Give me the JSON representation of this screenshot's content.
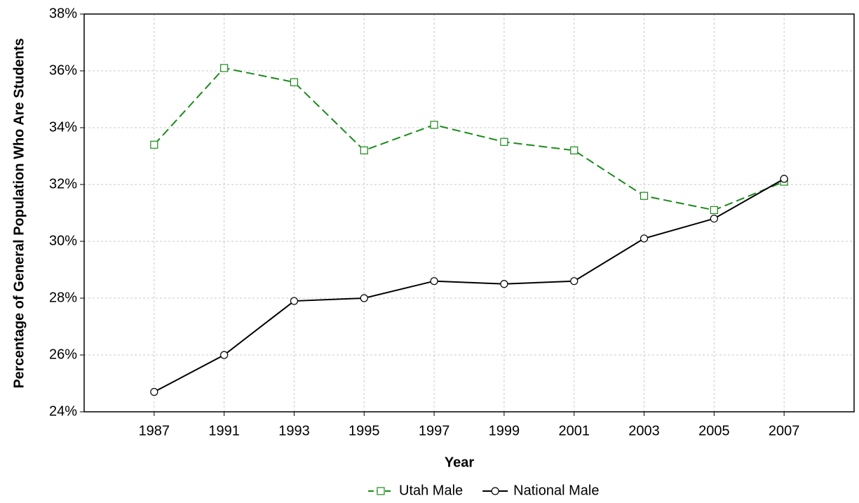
{
  "chart_data": {
    "type": "line",
    "x_label": "Year",
    "y_label": "Percentage of General Population Who Are Students",
    "categories": [
      "1987",
      "1991",
      "1993",
      "1995",
      "1997",
      "1999",
      "2001",
      "2003",
      "2005",
      "2007"
    ],
    "series": [
      {
        "name": "Utah Male",
        "color": "#1a8a1a",
        "dash": true,
        "marker": "square",
        "values": [
          33.4,
          36.1,
          35.6,
          33.2,
          34.1,
          33.5,
          33.2,
          31.6,
          31.1,
          32.1
        ]
      },
      {
        "name": "National Male",
        "color": "#000000",
        "dash": false,
        "marker": "circle",
        "values": [
          24.7,
          26.0,
          27.9,
          28.0,
          28.6,
          28.5,
          28.6,
          30.1,
          30.8,
          32.2
        ]
      }
    ],
    "ylim": [
      24,
      38
    ],
    "yticks": [
      {
        "value": 24,
        "label": "24%"
      },
      {
        "value": 26,
        "label": "26%"
      },
      {
        "value": 28,
        "label": "28%"
      },
      {
        "value": 30,
        "label": "30%"
      },
      {
        "value": 32,
        "label": "32%"
      },
      {
        "value": 34,
        "label": "34%"
      },
      {
        "value": 36,
        "label": "36%"
      },
      {
        "value": 38,
        "label": "38%"
      }
    ],
    "grid": true,
    "legend": "bottom"
  }
}
